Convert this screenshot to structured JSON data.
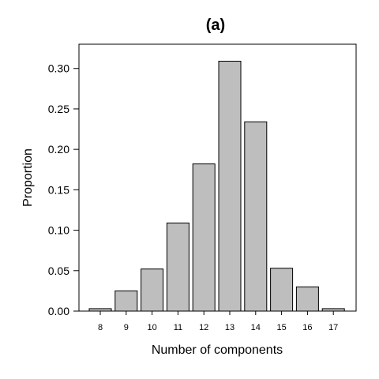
{
  "chart_data": {
    "type": "bar",
    "title": "(a)",
    "xlabel": "Number of components",
    "ylabel": "Proportion",
    "categories": [
      "8",
      "9",
      "10",
      "11",
      "12",
      "13",
      "14",
      "15",
      "16",
      "17"
    ],
    "values": [
      0.003,
      0.025,
      0.052,
      0.109,
      0.182,
      0.309,
      0.234,
      0.053,
      0.03,
      0.003
    ],
    "ylim": [
      0,
      0.33
    ],
    "yticks": [
      0.0,
      0.05,
      0.1,
      0.15,
      0.2,
      0.25,
      0.3
    ],
    "ytick_labels": [
      "0.00",
      "0.05",
      "0.10",
      "0.15",
      "0.20",
      "0.25",
      "0.30"
    ],
    "bar_color": "#bebebe",
    "grid": false,
    "legend": "none"
  }
}
